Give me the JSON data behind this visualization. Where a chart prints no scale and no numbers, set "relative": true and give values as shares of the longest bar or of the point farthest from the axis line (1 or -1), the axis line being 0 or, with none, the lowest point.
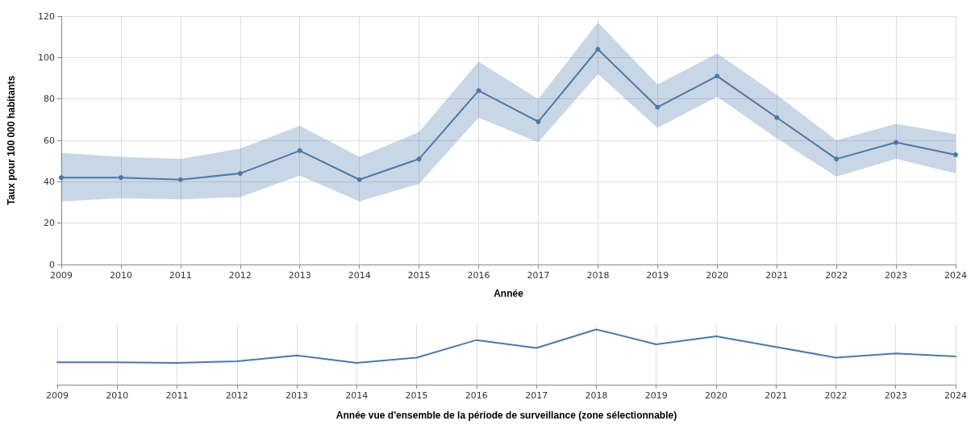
{
  "chart_data": [
    {
      "type": "line",
      "xlabel": "Année",
      "ylabel": "Taux pour 100 000 habitants",
      "x": [
        2009,
        2010,
        2011,
        2012,
        2013,
        2014,
        2015,
        2016,
        2017,
        2018,
        2019,
        2020,
        2021,
        2022,
        2023,
        2024
      ],
      "series": [
        {
          "color": "#4c78a8",
          "values": [
            42,
            42,
            41,
            44,
            55,
            41,
            51,
            84,
            69,
            104,
            76,
            91,
            71,
            51,
            59,
            53
          ],
          "lower": [
            30.5,
            32,
            31.5,
            32.5,
            43,
            30.5,
            39,
            71,
            59,
            92,
            66,
            81,
            61,
            42.5,
            51,
            44
          ],
          "upper": [
            54,
            52,
            51,
            56,
            67,
            52,
            64,
            98,
            80,
            117,
            87,
            102,
            82,
            60,
            68,
            63
          ]
        }
      ],
      "xlim": [
        2009,
        2024
      ],
      "xticks": [
        2009,
        2010,
        2011,
        2012,
        2013,
        2014,
        2015,
        2016,
        2017,
        2018,
        2019,
        2020,
        2021,
        2022,
        2023,
        2024
      ],
      "ylim": [
        0,
        120
      ],
      "yticks": [
        0,
        20,
        40,
        60,
        80,
        100,
        120
      ],
      "grid": true,
      "marker": "circle",
      "line_style": "solid"
    },
    {
      "type": "line",
      "xlabel": "Année vue d'ensemble de la période de surveillance (zone sélectionnable)",
      "x": [
        2009,
        2010,
        2011,
        2012,
        2013,
        2014,
        2015,
        2016,
        2017,
        2018,
        2019,
        2020,
        2021,
        2022,
        2023,
        2024
      ],
      "series": [
        {
          "color": "#4c78a8",
          "values": [
            0.404,
            0.404,
            0.394,
            0.423,
            0.529,
            0.394,
            0.49,
            0.808,
            0.663,
            1,
            0.731,
            0.875,
            0.683,
            0.49,
            0.567,
            0.51
          ]
        }
      ],
      "relative": true,
      "xlim": [
        2009,
        2024
      ],
      "xticks": [
        2009,
        2010,
        2011,
        2012,
        2013,
        2014,
        2015,
        2016,
        2017,
        2018,
        2019,
        2020,
        2021,
        2022,
        2023,
        2024
      ],
      "tick_labels": "x",
      "grid": "x",
      "marker": "none",
      "line_style": "solid"
    }
  ]
}
